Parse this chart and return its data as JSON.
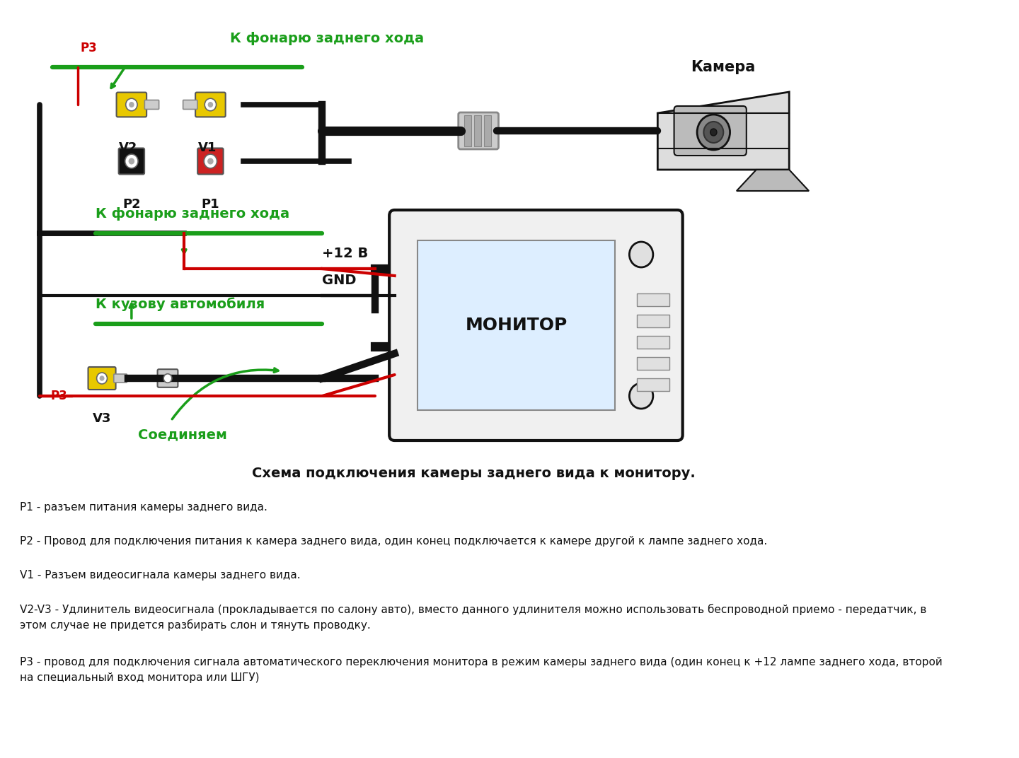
{
  "bg_color": "#ffffff",
  "title": "Схема подключения камеры заднего вида к монитору.",
  "label_p3_top": "P3",
  "label_v2": "V2",
  "label_v1": "V1",
  "label_p2": "P2",
  "label_p1": "P1",
  "label_camera": "Камера",
  "label_monitor": "МОНИТОР",
  "label_rear_light_top": "К фонарю заднего хода",
  "label_rear_light_mid": "К фонарю заднего хода",
  "label_body": "К кузову автомобиля",
  "label_12v": "+12 В",
  "label_gnd": "GND",
  "label_p3_bot": "P3",
  "label_v3": "V3",
  "label_connect": "Соединяем",
  "desc_title": "Схема подключения камеры заднего вида к монитору.",
  "desc_p1": "P1 - разъем питания камеры заднего вида.",
  "desc_p2": "P2 - Провод для подключения питания к камера заднего вида, один конец подключается к камере другой к лампе заднего хода.",
  "desc_v1": "V1 - Разъем видеосигнала камеры заднего вида.",
  "desc_v2v3": "V2-V3 - Удлинитель видеосигнала (прокладывается по салону авто), вместо данного удлинителя можно использовать беспроводной приемо - передатчик, в\nэтом случае не придется разбирать слон и тянуть проводку.",
  "desc_p3": "P3 - провод для подключения сигнала автоматического переключения монитора в режим камеры заднего вида (один конец к +12 лампе заднего хода, второй\nна специальный вход монитора или ШГУ)",
  "green": "#1a9e1a",
  "red": "#cc0000",
  "yellow": "#e8c800",
  "black": "#111111",
  "gray": "#888888",
  "dark_gray": "#444444",
  "line_color": "#111111"
}
